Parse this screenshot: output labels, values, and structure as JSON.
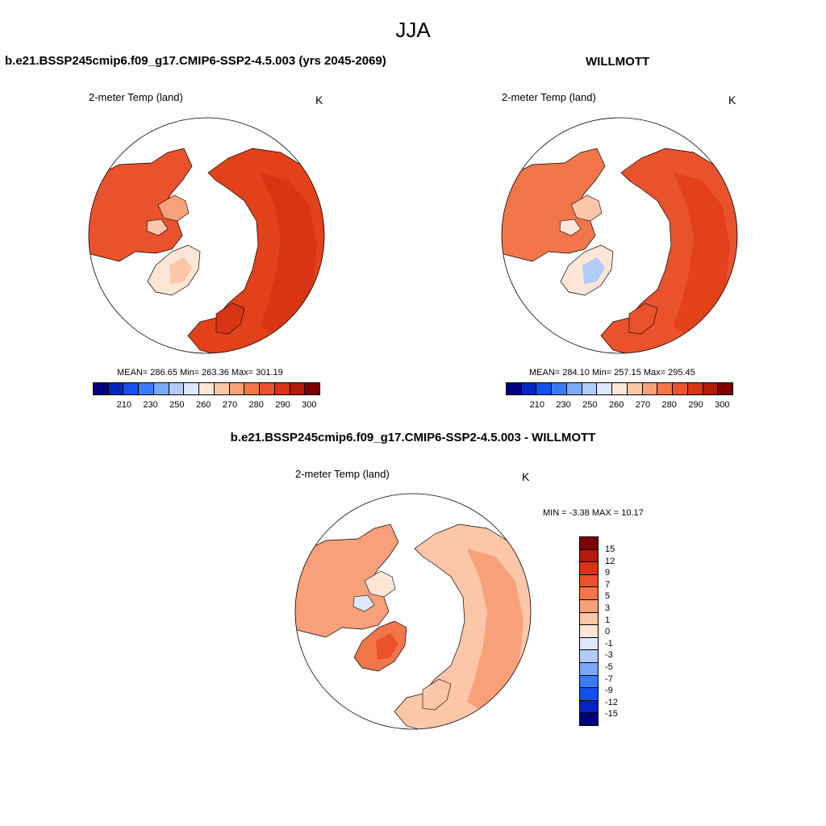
{
  "title": "JJA",
  "panels": [
    {
      "title": "b.e21.BSSP245cmip6.f09_g17.CMIP6-SSP2-4.5.003 (yrs 2045-2069)",
      "variable": "2-meter Temp (land)",
      "units": "K",
      "stats": "MEAN= 286.65  Min= 263.36  Max= 301.19",
      "colorbar_ticks": [
        "210",
        "230",
        "250",
        "260",
        "270",
        "280",
        "290",
        "300"
      ]
    },
    {
      "title": "WILLMOTT",
      "variable": "2-meter Temp (land)",
      "units": "K",
      "stats": "MEAN= 284.10  Min= 257.15  Max= 295.45",
      "colorbar_ticks": [
        "210",
        "230",
        "250",
        "260",
        "270",
        "280",
        "290",
        "300"
      ]
    },
    {
      "title": "b.e21.BSSP245cmip6.f09_g17.CMIP6-SSP2-4.5.003 - WILLMOTT",
      "variable": "2-meter Temp (land)",
      "units": "K",
      "stats": "MIN =  -3.38 MAX =  10.17",
      "colorbar_ticks": [
        "15",
        "12",
        "9",
        "7",
        "5",
        "3",
        "1",
        "0",
        "-1",
        "-3",
        "-5",
        "-7",
        "-9",
        "-12",
        "-15"
      ]
    }
  ],
  "colors": {
    "abs_colorbar": [
      "#00007f",
      "#0026c2",
      "#1550ee",
      "#3a7cf6",
      "#7aa9f7",
      "#b2cbf7",
      "#dde9fb",
      "#fde6d6",
      "#fcc6a8",
      "#f8a07a",
      "#f2764a",
      "#e9522c",
      "#d93514",
      "#b21a0a",
      "#7c0000"
    ],
    "diff_colorbar": [
      "#7c0000",
      "#b21a0a",
      "#d93514",
      "#e9522c",
      "#f2764a",
      "#f8a07a",
      "#fcc6a8",
      "#fde6d6",
      "#dde9fb",
      "#b2cbf7",
      "#7aa9f7",
      "#3a7cf6",
      "#1550ee",
      "#0026c2",
      "#00007f"
    ],
    "model_land": "#e2411a",
    "obs_land": "#e9522c",
    "diff_land": "#f7a783"
  }
}
